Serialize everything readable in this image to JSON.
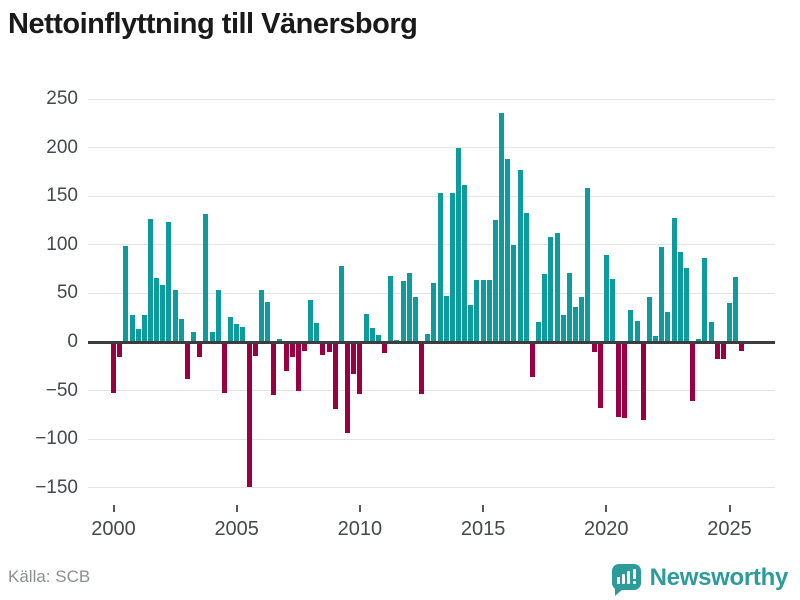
{
  "title": "Nettoinflyttning till Vänersborg",
  "source": "Källa: SCB",
  "logo": {
    "text": "Newsworthy",
    "icon": "newsworthy-speech-bubble-bar-chart-icon"
  },
  "colors": {
    "positive_bar": "#0f9b9b",
    "negative_bar": "#990042",
    "brand_teal": "#2e9b9b",
    "gridline": "#e4e4e4",
    "zero_axis": "#3d3d3d",
    "tick_label": "#45484d",
    "source_text": "#8c8f93",
    "title_text": "#1a1a1a"
  },
  "chart_data": {
    "type": "bar",
    "title": "Nettoinflyttning till Vänersborg",
    "xlabel": "",
    "ylabel": "",
    "frequency": "quarterly",
    "x_start": "2000 Q1",
    "x_end": "2025 Q3",
    "x_tick_years": [
      2000,
      2005,
      2010,
      2015,
      2020,
      2025
    ],
    "y_ticks": [
      250,
      200,
      150,
      100,
      50,
      0,
      -50,
      -100,
      -150
    ],
    "ylim": [
      -175,
      265
    ],
    "grid": true,
    "legend": "none",
    "values": [
      -50,
      -13,
      99,
      28,
      13,
      28,
      127,
      66,
      59,
      124,
      54,
      24,
      -36,
      10,
      -13,
      132,
      10,
      54,
      -50,
      26,
      19,
      15,
      -147,
      -12,
      54,
      41,
      -52,
      3,
      -28,
      -13,
      -48,
      -7,
      43,
      20,
      -11,
      -8,
      -67,
      78,
      -91,
      -31,
      -51,
      29,
      14,
      7,
      -9,
      68,
      2,
      63,
      71,
      46,
      -51,
      8,
      61,
      153,
      47,
      153,
      200,
      162,
      38,
      64,
      64,
      64,
      126,
      236,
      188,
      100,
      177,
      133,
      -34,
      21,
      70,
      108,
      112,
      28,
      71,
      36,
      46,
      158,
      -8,
      -66,
      90,
      65,
      -75,
      -76,
      33,
      22,
      -78,
      46,
      6,
      98,
      31,
      128,
      93,
      76,
      -59,
      3,
      86,
      21,
      -15,
      -15,
      40,
      67,
      -7
    ]
  }
}
